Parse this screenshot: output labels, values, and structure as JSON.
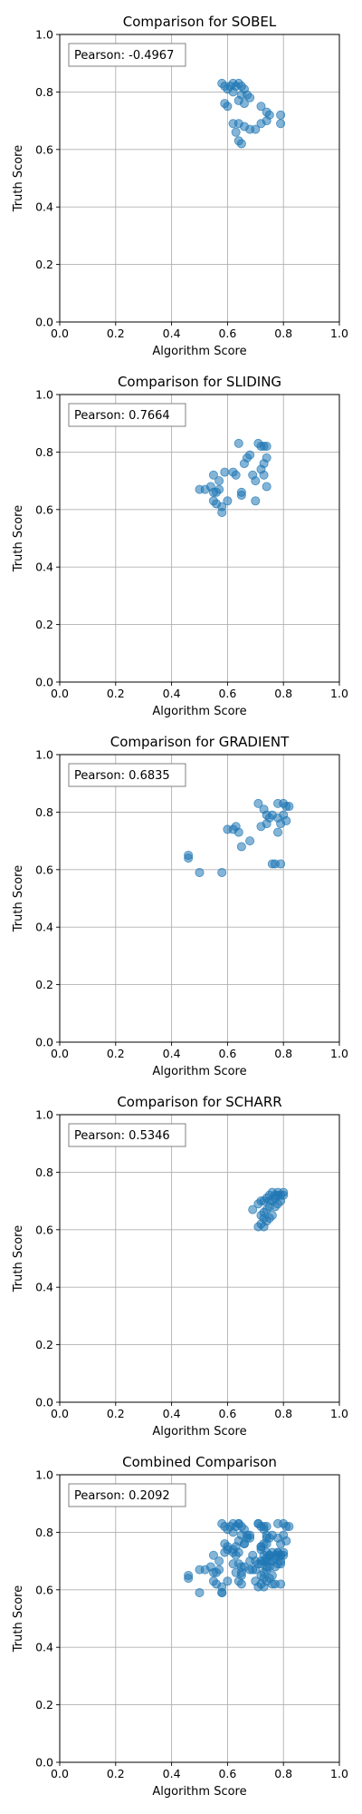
{
  "chart_data": [
    {
      "type": "scatter",
      "title": "Comparison for SOBEL",
      "xlabel": "Algorithm Score",
      "ylabel": "Truth Score",
      "xlim": [
        0,
        1
      ],
      "ylim": [
        0,
        1
      ],
      "xticks": [
        "0.0",
        "0.2",
        "0.4",
        "0.6",
        "0.8",
        "1.0"
      ],
      "yticks": [
        "0.0",
        "0.2",
        "0.4",
        "0.6",
        "0.8",
        "1.0"
      ],
      "grid": true,
      "color": "#1f77b4",
      "annotation": "Pearson: -0.4967",
      "points": [
        [
          0.58,
          0.83
        ],
        [
          0.59,
          0.82
        ],
        [
          0.6,
          0.81
        ],
        [
          0.61,
          0.82
        ],
        [
          0.62,
          0.83
        ],
        [
          0.63,
          0.82
        ],
        [
          0.64,
          0.83
        ],
        [
          0.65,
          0.82
        ],
        [
          0.66,
          0.81
        ],
        [
          0.62,
          0.8
        ],
        [
          0.65,
          0.79
        ],
        [
          0.67,
          0.79
        ],
        [
          0.68,
          0.78
        ],
        [
          0.64,
          0.77
        ],
        [
          0.59,
          0.76
        ],
        [
          0.6,
          0.75
        ],
        [
          0.66,
          0.76
        ],
        [
          0.72,
          0.75
        ],
        [
          0.74,
          0.73
        ],
        [
          0.75,
          0.72
        ],
        [
          0.79,
          0.72
        ],
        [
          0.62,
          0.69
        ],
        [
          0.64,
          0.69
        ],
        [
          0.66,
          0.68
        ],
        [
          0.68,
          0.67
        ],
        [
          0.7,
          0.67
        ],
        [
          0.72,
          0.69
        ],
        [
          0.74,
          0.7
        ],
        [
          0.79,
          0.69
        ],
        [
          0.63,
          0.66
        ],
        [
          0.64,
          0.63
        ],
        [
          0.65,
          0.62
        ]
      ]
    },
    {
      "type": "scatter",
      "title": "Comparison for SLIDING",
      "xlabel": "Algorithm Score",
      "ylabel": "Truth Score",
      "xlim": [
        0,
        1
      ],
      "ylim": [
        0,
        1
      ],
      "xticks": [
        "0.0",
        "0.2",
        "0.4",
        "0.6",
        "0.8",
        "1.0"
      ],
      "yticks": [
        "0.0",
        "0.2",
        "0.4",
        "0.6",
        "0.8",
        "1.0"
      ],
      "grid": true,
      "color": "#1f77b4",
      "annotation": "Pearson: 0.7664",
      "points": [
        [
          0.5,
          0.67
        ],
        [
          0.52,
          0.67
        ],
        [
          0.54,
          0.68
        ],
        [
          0.55,
          0.66
        ],
        [
          0.56,
          0.66
        ],
        [
          0.57,
          0.67
        ],
        [
          0.55,
          0.63
        ],
        [
          0.56,
          0.62
        ],
        [
          0.58,
          0.61
        ],
        [
          0.58,
          0.59
        ],
        [
          0.6,
          0.63
        ],
        [
          0.55,
          0.72
        ],
        [
          0.57,
          0.7
        ],
        [
          0.59,
          0.73
        ],
        [
          0.62,
          0.73
        ],
        [
          0.63,
          0.72
        ],
        [
          0.65,
          0.66
        ],
        [
          0.65,
          0.65
        ],
        [
          0.66,
          0.76
        ],
        [
          0.67,
          0.78
        ],
        [
          0.68,
          0.79
        ],
        [
          0.69,
          0.72
        ],
        [
          0.7,
          0.7
        ],
        [
          0.7,
          0.63
        ],
        [
          0.64,
          0.83
        ],
        [
          0.71,
          0.83
        ],
        [
          0.72,
          0.82
        ],
        [
          0.73,
          0.82
        ],
        [
          0.74,
          0.82
        ],
        [
          0.73,
          0.76
        ],
        [
          0.74,
          0.78
        ],
        [
          0.72,
          0.74
        ],
        [
          0.73,
          0.72
        ],
        [
          0.74,
          0.68
        ]
      ]
    },
    {
      "type": "scatter",
      "title": "Comparison for GRADIENT",
      "xlabel": "Algorithm Score",
      "ylabel": "Truth Score",
      "xlim": [
        0,
        1
      ],
      "ylim": [
        0,
        1
      ],
      "xticks": [
        "0.0",
        "0.2",
        "0.4",
        "0.6",
        "0.8",
        "1.0"
      ],
      "yticks": [
        "0.0",
        "0.2",
        "0.4",
        "0.6",
        "0.8",
        "1.0"
      ],
      "grid": true,
      "color": "#1f77b4",
      "annotation": "Pearson: 0.6835",
      "points": [
        [
          0.46,
          0.65
        ],
        [
          0.46,
          0.64
        ],
        [
          0.5,
          0.59
        ],
        [
          0.58,
          0.59
        ],
        [
          0.6,
          0.74
        ],
        [
          0.62,
          0.74
        ],
        [
          0.63,
          0.75
        ],
        [
          0.64,
          0.73
        ],
        [
          0.65,
          0.68
        ],
        [
          0.68,
          0.7
        ],
        [
          0.71,
          0.83
        ],
        [
          0.73,
          0.81
        ],
        [
          0.74,
          0.79
        ],
        [
          0.75,
          0.78
        ],
        [
          0.72,
          0.75
        ],
        [
          0.74,
          0.76
        ],
        [
          0.76,
          0.79
        ],
        [
          0.78,
          0.78
        ],
        [
          0.79,
          0.76
        ],
        [
          0.8,
          0.79
        ],
        [
          0.81,
          0.77
        ],
        [
          0.78,
          0.83
        ],
        [
          0.8,
          0.83
        ],
        [
          0.81,
          0.82
        ],
        [
          0.82,
          0.82
        ],
        [
          0.76,
          0.62
        ],
        [
          0.77,
          0.62
        ],
        [
          0.79,
          0.62
        ],
        [
          0.78,
          0.73
        ]
      ]
    },
    {
      "type": "scatter",
      "title": "Comparison for SCHARR",
      "xlabel": "Algorithm Score",
      "ylabel": "Truth Score",
      "xlim": [
        0,
        1
      ],
      "ylim": [
        0,
        1
      ],
      "xticks": [
        "0.0",
        "0.2",
        "0.4",
        "0.6",
        "0.8",
        "1.0"
      ],
      "yticks": [
        "0.0",
        "0.2",
        "0.4",
        "0.6",
        "0.8",
        "1.0"
      ],
      "grid": true,
      "color": "#1f77b4",
      "annotation": "Pearson: 0.5346",
      "points": [
        [
          0.69,
          0.67
        ],
        [
          0.71,
          0.69
        ],
        [
          0.72,
          0.7
        ],
        [
          0.73,
          0.7
        ],
        [
          0.74,
          0.71
        ],
        [
          0.75,
          0.72
        ],
        [
          0.76,
          0.73
        ],
        [
          0.77,
          0.72
        ],
        [
          0.78,
          0.73
        ],
        [
          0.79,
          0.72
        ],
        [
          0.8,
          0.73
        ],
        [
          0.76,
          0.7
        ],
        [
          0.77,
          0.71
        ],
        [
          0.78,
          0.69
        ],
        [
          0.79,
          0.7
        ],
        [
          0.75,
          0.68
        ],
        [
          0.74,
          0.67
        ],
        [
          0.73,
          0.66
        ],
        [
          0.72,
          0.65
        ],
        [
          0.73,
          0.64
        ],
        [
          0.74,
          0.63
        ],
        [
          0.75,
          0.64
        ],
        [
          0.76,
          0.65
        ],
        [
          0.72,
          0.62
        ],
        [
          0.71,
          0.61
        ],
        [
          0.73,
          0.61
        ],
        [
          0.77,
          0.68
        ],
        [
          0.78,
          0.72
        ],
        [
          0.8,
          0.72
        ],
        [
          0.75,
          0.7
        ]
      ]
    },
    {
      "type": "scatter",
      "title": "Combined Comparison",
      "xlabel": "Algorithm Score",
      "ylabel": "Truth Score",
      "xlim": [
        0,
        1
      ],
      "ylim": [
        0,
        1
      ],
      "xticks": [
        "0.0",
        "0.2",
        "0.4",
        "0.6",
        "0.8",
        "1.0"
      ],
      "yticks": [
        "0.0",
        "0.2",
        "0.4",
        "0.6",
        "0.8",
        "1.0"
      ],
      "grid": true,
      "color": "#1f77b4",
      "annotation": "Pearson: 0.2092",
      "points": [
        [
          0.58,
          0.83
        ],
        [
          0.59,
          0.82
        ],
        [
          0.6,
          0.81
        ],
        [
          0.61,
          0.82
        ],
        [
          0.62,
          0.83
        ],
        [
          0.63,
          0.82
        ],
        [
          0.64,
          0.83
        ],
        [
          0.65,
          0.82
        ],
        [
          0.66,
          0.81
        ],
        [
          0.62,
          0.8
        ],
        [
          0.65,
          0.79
        ],
        [
          0.67,
          0.79
        ],
        [
          0.68,
          0.78
        ],
        [
          0.64,
          0.77
        ],
        [
          0.59,
          0.76
        ],
        [
          0.6,
          0.75
        ],
        [
          0.66,
          0.76
        ],
        [
          0.72,
          0.75
        ],
        [
          0.74,
          0.73
        ],
        [
          0.75,
          0.72
        ],
        [
          0.79,
          0.72
        ],
        [
          0.62,
          0.69
        ],
        [
          0.64,
          0.69
        ],
        [
          0.66,
          0.68
        ],
        [
          0.68,
          0.67
        ],
        [
          0.7,
          0.67
        ],
        [
          0.72,
          0.69
        ],
        [
          0.74,
          0.7
        ],
        [
          0.79,
          0.69
        ],
        [
          0.63,
          0.66
        ],
        [
          0.64,
          0.63
        ],
        [
          0.65,
          0.62
        ],
        [
          0.5,
          0.67
        ],
        [
          0.52,
          0.67
        ],
        [
          0.54,
          0.68
        ],
        [
          0.55,
          0.66
        ],
        [
          0.56,
          0.66
        ],
        [
          0.57,
          0.67
        ],
        [
          0.55,
          0.63
        ],
        [
          0.56,
          0.62
        ],
        [
          0.58,
          0.61
        ],
        [
          0.58,
          0.59
        ],
        [
          0.6,
          0.63
        ],
        [
          0.55,
          0.72
        ],
        [
          0.57,
          0.7
        ],
        [
          0.59,
          0.73
        ],
        [
          0.62,
          0.73
        ],
        [
          0.63,
          0.72
        ],
        [
          0.65,
          0.66
        ],
        [
          0.65,
          0.65
        ],
        [
          0.66,
          0.76
        ],
        [
          0.67,
          0.78
        ],
        [
          0.68,
          0.79
        ],
        [
          0.69,
          0.72
        ],
        [
          0.7,
          0.7
        ],
        [
          0.7,
          0.63
        ],
        [
          0.64,
          0.83
        ],
        [
          0.71,
          0.83
        ],
        [
          0.72,
          0.82
        ],
        [
          0.73,
          0.82
        ],
        [
          0.74,
          0.82
        ],
        [
          0.73,
          0.76
        ],
        [
          0.74,
          0.78
        ],
        [
          0.72,
          0.74
        ],
        [
          0.73,
          0.72
        ],
        [
          0.74,
          0.68
        ],
        [
          0.46,
          0.65
        ],
        [
          0.46,
          0.64
        ],
        [
          0.5,
          0.59
        ],
        [
          0.58,
          0.59
        ],
        [
          0.6,
          0.74
        ],
        [
          0.62,
          0.74
        ],
        [
          0.63,
          0.75
        ],
        [
          0.64,
          0.73
        ],
        [
          0.65,
          0.68
        ],
        [
          0.68,
          0.7
        ],
        [
          0.71,
          0.83
        ],
        [
          0.73,
          0.81
        ],
        [
          0.74,
          0.79
        ],
        [
          0.75,
          0.78
        ],
        [
          0.72,
          0.75
        ],
        [
          0.74,
          0.76
        ],
        [
          0.76,
          0.79
        ],
        [
          0.78,
          0.78
        ],
        [
          0.79,
          0.76
        ],
        [
          0.8,
          0.79
        ],
        [
          0.81,
          0.77
        ],
        [
          0.78,
          0.83
        ],
        [
          0.8,
          0.83
        ],
        [
          0.81,
          0.82
        ],
        [
          0.82,
          0.82
        ],
        [
          0.76,
          0.62
        ],
        [
          0.77,
          0.62
        ],
        [
          0.79,
          0.62
        ],
        [
          0.78,
          0.73
        ],
        [
          0.69,
          0.67
        ],
        [
          0.71,
          0.69
        ],
        [
          0.72,
          0.7
        ],
        [
          0.73,
          0.7
        ],
        [
          0.74,
          0.71
        ],
        [
          0.75,
          0.72
        ],
        [
          0.76,
          0.73
        ],
        [
          0.77,
          0.72
        ],
        [
          0.78,
          0.73
        ],
        [
          0.79,
          0.72
        ],
        [
          0.8,
          0.73
        ],
        [
          0.76,
          0.7
        ],
        [
          0.77,
          0.71
        ],
        [
          0.78,
          0.69
        ],
        [
          0.79,
          0.7
        ],
        [
          0.75,
          0.68
        ],
        [
          0.74,
          0.67
        ],
        [
          0.73,
          0.66
        ],
        [
          0.72,
          0.65
        ],
        [
          0.73,
          0.64
        ],
        [
          0.74,
          0.63
        ],
        [
          0.75,
          0.64
        ],
        [
          0.76,
          0.65
        ],
        [
          0.72,
          0.62
        ],
        [
          0.71,
          0.61
        ],
        [
          0.73,
          0.61
        ],
        [
          0.77,
          0.68
        ],
        [
          0.78,
          0.72
        ],
        [
          0.8,
          0.72
        ],
        [
          0.75,
          0.7
        ]
      ]
    }
  ]
}
